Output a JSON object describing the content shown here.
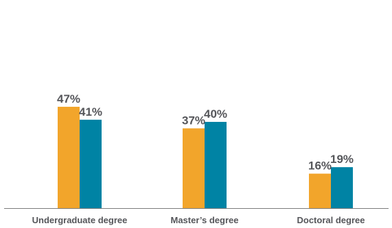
{
  "chart_data": {
    "type": "bar",
    "categories": [
      "Undergraduate degree",
      "Master’s degree",
      "Doctoral degree"
    ],
    "series": [
      {
        "values": [
          47,
          37,
          16
        ],
        "labels": [
          "47%",
          "37%",
          "16%"
        ],
        "color": "#f2a52b"
      },
      {
        "values": [
          41,
          40,
          19
        ],
        "labels": [
          "41%",
          "40%",
          "19%"
        ],
        "color": "#0083a4"
      }
    ],
    "ylim": [
      0,
      100
    ],
    "grid": false,
    "legend": "none"
  },
  "colors": {
    "axis": "#7a7a7a",
    "text": "#55565a"
  }
}
